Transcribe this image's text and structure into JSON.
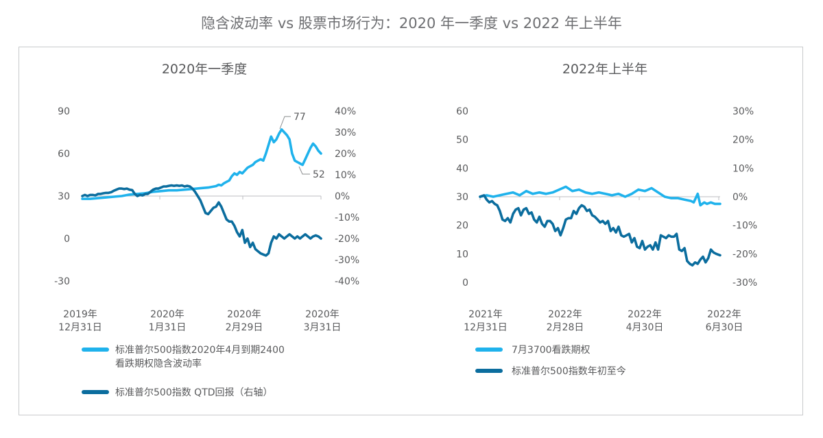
{
  "title": "隐含波动率 vs 股票市场行为：2020 年一季度 vs 2022 年上半年",
  "colors": {
    "light": "#1fb2ec",
    "dark": "#0b6d9e",
    "axis": "#bcbec0",
    "text": "#58595b"
  },
  "chart_data": [
    {
      "type": "line",
      "title": "2020年一季度",
      "y_left": {
        "range": [
          -30,
          90
        ],
        "ticks": [
          "90",
          "60",
          "30",
          "0",
          "-30"
        ]
      },
      "y_right": {
        "range": [
          -40,
          40
        ],
        "ticks": [
          "40%",
          "30%",
          "20%",
          "10%",
          "0%",
          "-10%",
          "-20%",
          "-30%",
          "-40%"
        ]
      },
      "x_ticks": [
        {
          "line1": "2019年",
          "line2": "12月31日"
        },
        {
          "line1": "2020年",
          "line2": "1月31日"
        },
        {
          "line1": "2020年",
          "line2": "2月29日"
        },
        {
          "line1": "2020年",
          "line2": "3月31日"
        }
      ],
      "x_range_days": [
        0,
        91
      ],
      "annotations": [
        {
          "text": "77",
          "x": 72,
          "y": 77
        },
        {
          "text": "52",
          "x": 78,
          "y": 52
        }
      ],
      "series": [
        {
          "name": "标准普尔500指数2020年4月到期2400看跌期权隐含波动率",
          "legend_lines": [
            "标准普尔500指数2020年4月到期2400",
            "看跌期权隐含波动率"
          ],
          "axis": "left",
          "color": "light",
          "x": [
            0,
            3,
            6,
            9,
            12,
            15,
            18,
            21,
            24,
            27,
            30,
            33,
            36,
            39,
            42,
            45,
            48,
            51,
            52,
            53,
            54,
            55,
            56,
            57,
            58,
            59,
            60,
            61,
            62,
            63,
            64,
            65,
            66,
            67,
            68,
            69,
            70,
            71,
            72,
            73,
            74,
            75,
            76,
            77,
            78,
            79,
            80,
            81,
            82,
            83,
            84,
            85,
            86,
            87,
            88,
            89,
            90,
            91
          ],
          "y": [
            28,
            28,
            28.5,
            29,
            29.5,
            30,
            31,
            31.5,
            32,
            33,
            33.5,
            34,
            34,
            34.5,
            35,
            35.5,
            36,
            37,
            38,
            37.5,
            39,
            40,
            41,
            44,
            46,
            45,
            47,
            46,
            48,
            50,
            51,
            52,
            54,
            55,
            56,
            55,
            60,
            66,
            72,
            68,
            70,
            74,
            77,
            75,
            73,
            70,
            60,
            55,
            54,
            53,
            52,
            56,
            60,
            64,
            67,
            65,
            62,
            60
          ]
        },
        {
          "name": "标准普尔500指数 QTD回报（右轴）",
          "legend_lines": [
            "标准普尔500指数 QTD回报（右轴）"
          ],
          "axis": "right",
          "color": "dark",
          "x": [
            0,
            1,
            2,
            3,
            4,
            5,
            6,
            7,
            8,
            9,
            10,
            11,
            12,
            13,
            14,
            15,
            16,
            17,
            18,
            19,
            20,
            21,
            22,
            23,
            24,
            25,
            26,
            27,
            28,
            29,
            30,
            31,
            32,
            33,
            34,
            35,
            36,
            37,
            38,
            39,
            40,
            41,
            42,
            43,
            44,
            45,
            46,
            47,
            48,
            49,
            50,
            51,
            52,
            53,
            54,
            55,
            56,
            57,
            58,
            59,
            60,
            61,
            62,
            63,
            64,
            65,
            66,
            67,
            68,
            69,
            70,
            71,
            72,
            73,
            74,
            75,
            76,
            77,
            78,
            79,
            80,
            81,
            82,
            83,
            84,
            85,
            86,
            87,
            88,
            89,
            90,
            91
          ],
          "y": [
            0,
            0.5,
            0,
            0.5,
            0.5,
            0.3,
            1,
            1,
            1.3,
            1.5,
            1.5,
            1.8,
            2.5,
            3,
            3.5,
            3.5,
            3.3,
            3.5,
            3,
            2.8,
            1,
            0,
            0.5,
            0.3,
            1,
            1,
            2,
            3,
            3.5,
            3.5,
            4,
            4.5,
            4.5,
            4.8,
            5,
            4.8,
            5,
            4.8,
            5,
            4.5,
            4.8,
            4.5,
            3.5,
            2,
            0,
            -2,
            -5,
            -8,
            -8.5,
            -7,
            -5.5,
            -5,
            -3,
            -5,
            -8,
            -11,
            -12,
            -12,
            -14,
            -17,
            -19,
            -16,
            -22,
            -20,
            -24,
            -22,
            -25,
            -26,
            -27,
            -27.5,
            -28,
            -27,
            -22,
            -19,
            -20,
            -18,
            -19,
            -20,
            -19,
            -18,
            -19,
            -20,
            -19,
            -20,
            -19,
            -18,
            -19,
            -20,
            -19,
            -18.5,
            -19,
            -20
          ]
        }
      ]
    },
    {
      "type": "line",
      "title": "2022年上半年",
      "y_left": {
        "range": [
          0,
          60
        ],
        "ticks": [
          "60",
          "50",
          "40",
          "30",
          "20",
          "10",
          "0"
        ]
      },
      "y_right": {
        "range": [
          -30,
          30
        ],
        "ticks": [
          "30%",
          "20%",
          "10%",
          "0%",
          "-10%",
          "-20%",
          "-30%"
        ]
      },
      "x_ticks": [
        {
          "line1": "2021年",
          "line2": "12月31日"
        },
        {
          "line1": "2022年",
          "line2": "2月28日"
        },
        {
          "line1": "2022年",
          "line2": "4月30日"
        },
        {
          "line1": "2022年",
          "line2": "6月30日"
        }
      ],
      "x_range_days": [
        0,
        182
      ],
      "series": [
        {
          "name": "7月3700看跌期权",
          "legend_lines": [
            "7月3700看跌期权"
          ],
          "axis": "left",
          "color": "light",
          "x": [
            0,
            5,
            10,
            15,
            20,
            25,
            30,
            35,
            40,
            45,
            50,
            55,
            60,
            65,
            70,
            75,
            80,
            85,
            90,
            95,
            100,
            105,
            110,
            115,
            120,
            125,
            130,
            135,
            140,
            145,
            150,
            155,
            160,
            162,
            165,
            167,
            170,
            172,
            175,
            178,
            182
          ],
          "y": [
            30,
            30.5,
            30,
            30.5,
            31,
            31.5,
            30.5,
            32,
            31,
            31.5,
            31,
            31.5,
            32.5,
            33.5,
            32,
            32.5,
            31.5,
            31,
            31.5,
            31,
            30.5,
            31,
            30,
            31,
            32.5,
            32,
            33,
            31.5,
            30,
            29.5,
            29.5,
            29,
            28.5,
            28,
            31,
            27,
            28,
            27.5,
            28,
            27.5,
            27.5
          ]
        },
        {
          "name": "标准普尔500指数年初至今",
          "legend_lines": [
            "标准普尔500指数年初至今"
          ],
          "axis": "right",
          "color": "dark",
          "x": [
            0,
            3,
            5,
            7,
            9,
            11,
            13,
            15,
            17,
            19,
            21,
            23,
            25,
            27,
            29,
            31,
            33,
            35,
            37,
            39,
            41,
            43,
            45,
            47,
            49,
            51,
            53,
            55,
            57,
            59,
            61,
            63,
            65,
            67,
            69,
            71,
            73,
            75,
            77,
            79,
            81,
            83,
            85,
            87,
            89,
            91,
            93,
            95,
            97,
            99,
            101,
            103,
            105,
            107,
            109,
            111,
            113,
            115,
            117,
            119,
            121,
            123,
            125,
            127,
            129,
            131,
            133,
            135,
            137,
            139,
            141,
            143,
            145,
            147,
            149,
            151,
            153,
            155,
            157,
            159,
            161,
            163,
            165,
            167,
            169,
            171,
            173,
            175,
            177,
            179,
            182
          ],
          "y": [
            0,
            0.5,
            -1,
            -2,
            -1.5,
            -2.5,
            -3,
            -5,
            -8,
            -8.5,
            -7.5,
            -9,
            -6,
            -4.5,
            -4,
            -6.5,
            -4.5,
            -4,
            -6,
            -5.5,
            -8,
            -9,
            -7,
            -9.5,
            -10.5,
            -8.5,
            -8.5,
            -9.5,
            -12,
            -11,
            -13.5,
            -11,
            -8,
            -7.5,
            -7.5,
            -5,
            -6,
            -4,
            -3,
            -3.5,
            -5,
            -4.5,
            -6.5,
            -7,
            -8,
            -9,
            -8.5,
            -9.5,
            -8.5,
            -12,
            -11,
            -12.5,
            -10.5,
            -13.5,
            -14,
            -13.5,
            -13,
            -16,
            -14.5,
            -17.5,
            -18,
            -15.5,
            -18.5,
            -17.5,
            -17,
            -18.5,
            -16,
            -18.5,
            -13.5,
            -14,
            -14.5,
            -13.5,
            -14,
            -14,
            -13,
            -18.5,
            -19,
            -18,
            -22.5,
            -23.5,
            -24,
            -23,
            -23.5,
            -22,
            -21,
            -23,
            -21.5,
            -18.5,
            -19.5,
            -20,
            -20.5
          ]
        }
      ]
    }
  ]
}
